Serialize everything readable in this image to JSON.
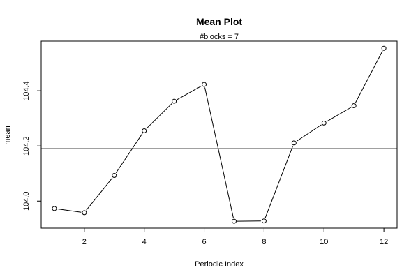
{
  "chart_data": {
    "type": "line",
    "title": "Mean Plot",
    "subtitle": "#blocks =  7",
    "xlabel": "Periodic Index",
    "ylabel": "mean",
    "x": [
      1,
      2,
      3,
      4,
      5,
      6,
      7,
      8,
      9,
      10,
      11,
      12
    ],
    "series": [
      {
        "values": [
          103.973,
          103.958,
          104.093,
          104.255,
          104.362,
          104.423,
          103.927,
          103.928,
          104.211,
          104.283,
          104.346,
          104.554
        ]
      }
    ],
    "reference_line": 104.19,
    "xlim": [
      0.56,
      12.44
    ],
    "ylim": [
      103.902,
      104.58
    ],
    "xticks": [
      2,
      4,
      6,
      8,
      10,
      12
    ],
    "yticks": [
      104.0,
      104.2,
      104.4
    ],
    "ytick_labels": [
      "104.0",
      "104.2",
      "104.4"
    ],
    "grid": false,
    "marker": "open-circle"
  }
}
